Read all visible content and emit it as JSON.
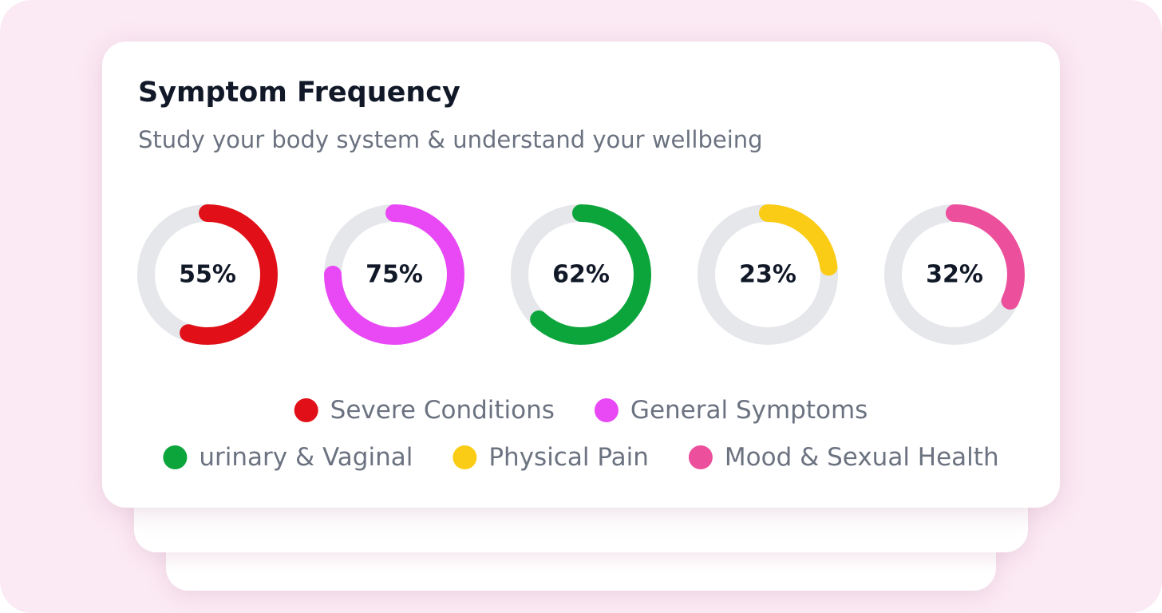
{
  "chart_data": {
    "type": "donut",
    "title": "Symptom Frequency",
    "subtitle": "Study your body system & understand your wellbeing",
    "categories": [
      "Severe Conditions",
      "General Symptoms",
      "urinary & Vaginal",
      "Physical Pain",
      "Mood & Sexual Health"
    ],
    "values": [
      55,
      75,
      62,
      23,
      32
    ],
    "value_labels": [
      "55%",
      "75%",
      "62%",
      "23%",
      "32%"
    ],
    "colors": [
      "#e10f17",
      "#e849f5",
      "#0ca53c",
      "#facc15",
      "#ec4f9c"
    ],
    "ylim": [
      0,
      100
    ]
  }
}
